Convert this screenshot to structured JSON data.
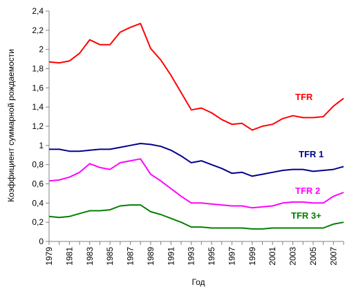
{
  "chart_data": {
    "type": "line",
    "xlabel": "Год",
    "ylabel": "Коэффициент суммарной рождаемости",
    "x": [
      1979,
      1980,
      1981,
      1982,
      1983,
      1984,
      1985,
      1986,
      1987,
      1988,
      1989,
      1990,
      1991,
      1992,
      1993,
      1994,
      1995,
      1996,
      1997,
      1998,
      1999,
      2000,
      2001,
      2002,
      2003,
      2004,
      2005,
      2006,
      2007,
      2008
    ],
    "x_tick_labels": [
      "1979",
      "1981",
      "1983",
      "1985",
      "1987",
      "1989",
      "1991",
      "1993",
      "1995",
      "1997",
      "1999",
      "2001",
      "2003",
      "2005",
      "2007"
    ],
    "y_tick_labels": [
      "0",
      "0,2",
      "0,4",
      "0,6",
      "0,8",
      "1",
      "1,2",
      "1,4",
      "1,6",
      "1,8",
      "2",
      "2,2",
      "2,4"
    ],
    "ylim": [
      0,
      2.4
    ],
    "xlim": [
      1979,
      2008
    ],
    "grid": false,
    "legend": "none",
    "series": [
      {
        "name": "TFR",
        "color": "#ff0000",
        "values": [
          1.87,
          1.86,
          1.88,
          1.96,
          2.1,
          2.05,
          2.05,
          2.18,
          2.23,
          2.27,
          2.01,
          1.89,
          1.73,
          1.55,
          1.37,
          1.39,
          1.34,
          1.27,
          1.22,
          1.23,
          1.16,
          1.2,
          1.22,
          1.28,
          1.31,
          1.29,
          1.29,
          1.3,
          1.41,
          1.49
        ]
      },
      {
        "name": "TFR 1",
        "color": "#00008b",
        "values": [
          0.96,
          0.96,
          0.94,
          0.94,
          0.95,
          0.96,
          0.96,
          0.98,
          1.0,
          1.02,
          1.01,
          0.99,
          0.95,
          0.89,
          0.82,
          0.84,
          0.8,
          0.76,
          0.71,
          0.72,
          0.68,
          0.7,
          0.72,
          0.74,
          0.75,
          0.75,
          0.73,
          0.74,
          0.75,
          0.78
        ]
      },
      {
        "name": "TFR 2",
        "color": "#ff00ff",
        "values": [
          0.63,
          0.64,
          0.67,
          0.72,
          0.81,
          0.77,
          0.75,
          0.82,
          0.84,
          0.86,
          0.7,
          0.63,
          0.55,
          0.47,
          0.4,
          0.4,
          0.39,
          0.38,
          0.37,
          0.37,
          0.35,
          0.36,
          0.37,
          0.4,
          0.41,
          0.41,
          0.4,
          0.4,
          0.47,
          0.51
        ]
      },
      {
        "name": "TFR 3+",
        "color": "#008000",
        "values": [
          0.26,
          0.25,
          0.26,
          0.29,
          0.32,
          0.32,
          0.33,
          0.37,
          0.38,
          0.38,
          0.31,
          0.28,
          0.24,
          0.2,
          0.15,
          0.15,
          0.14,
          0.14,
          0.14,
          0.14,
          0.13,
          0.13,
          0.14,
          0.14,
          0.14,
          0.14,
          0.14,
          0.14,
          0.18,
          0.2
        ]
      }
    ]
  }
}
